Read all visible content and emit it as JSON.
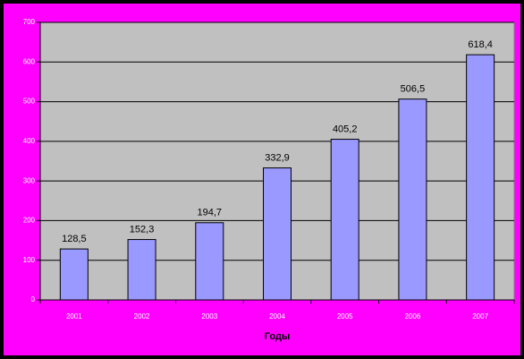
{
  "chart_data": {
    "type": "bar",
    "x_label": "Годы",
    "categories": [
      "2001",
      "2002",
      "2003",
      "2004",
      "2005",
      "2006",
      "2007"
    ],
    "values": [
      128.5,
      152.3,
      194.7,
      332.9,
      405.2,
      506.5,
      618.4
    ],
    "value_labels": [
      "128,5",
      "152,3",
      "194,7",
      "332,9",
      "405,2",
      "506,5",
      "618,4"
    ],
    "color": "#9999ff",
    "ylim": [
      0,
      700
    ],
    "yticks": [
      0,
      100,
      200,
      300,
      400,
      500,
      600,
      700
    ],
    "grid": true
  }
}
